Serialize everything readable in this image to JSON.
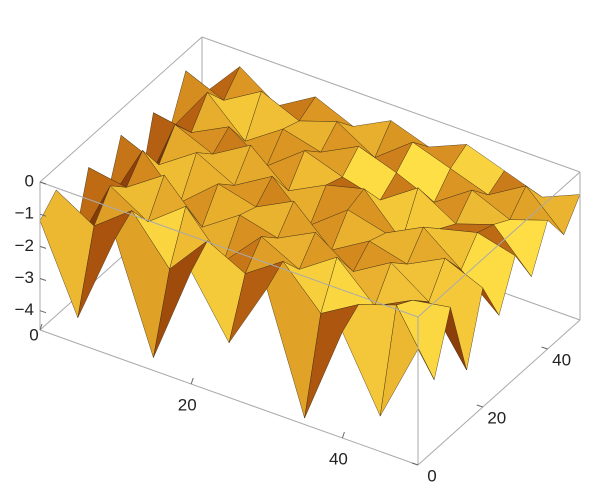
{
  "chart_data": {
    "type": "surface",
    "x": [
      0,
      5,
      10,
      15,
      20,
      25,
      30,
      35,
      40,
      45,
      50
    ],
    "y": [
      0,
      5,
      10,
      15,
      20,
      25,
      30,
      35,
      40,
      45,
      50
    ],
    "z": [
      [
        -1.2,
        -3.8,
        -0.9,
        -4.2,
        -1.1,
        -2.9,
        -0.8,
        -4.4,
        -1.3,
        -3.5,
        -1.0
      ],
      [
        -0.7,
        -1.4,
        -0.5,
        -1.9,
        -0.6,
        -1.2,
        -0.4,
        -1.6,
        -0.9,
        -0.5,
        -2.4
      ],
      [
        -3.1,
        -0.6,
        -1.3,
        -0.4,
        -1.7,
        -0.5,
        -1.1,
        -0.3,
        -1.4,
        -0.8,
        -0.6
      ],
      [
        -0.9,
        -1.1,
        -0.3,
        -1.5,
        -0.7,
        -1.0,
        -0.4,
        -1.2,
        -0.5,
        -1.3,
        -3.0
      ],
      [
        -2.6,
        -0.4,
        -1.6,
        -0.6,
        -0.9,
        -0.3,
        -1.4,
        -0.7,
        -1.0,
        -0.4,
        -0.9
      ],
      [
        -0.8,
        -1.3,
        -0.5,
        -1.1,
        -0.4,
        -1.5,
        -0.6,
        -0.9,
        -0.3,
        -1.2,
        -2.2
      ],
      [
        -3.4,
        -0.5,
        -1.0,
        -0.3,
        -1.3,
        -0.7,
        -0.4,
        -1.6,
        -0.8,
        -0.5,
        -0.8
      ],
      [
        -1.0,
        -1.2,
        -0.6,
        -1.4,
        -0.5,
        -0.9,
        -1.2,
        -0.4,
        -1.1,
        -0.7,
        -1.9
      ],
      [
        -2.0,
        -0.4,
        -1.5,
        -0.7,
        -1.0,
        -0.4,
        -0.8,
        -1.3,
        -0.5,
        -1.0,
        -0.6
      ],
      [
        -0.6,
        -1.1,
        -0.4,
        -0.9,
        -0.5,
        -1.2,
        -0.3,
        -0.7,
        -1.1,
        -0.4,
        -1.5
      ],
      [
        -1.8,
        -0.5,
        -1.3,
        -0.6,
        -1.1,
        -0.5,
        -0.9,
        -0.4,
        -0.8,
        -1.2,
        -0.7
      ]
    ],
    "xlim": [
      0,
      50
    ],
    "ylim": [
      0,
      50
    ],
    "zlim": [
      -4.6,
      0
    ],
    "xticks": [
      0,
      20,
      40
    ],
    "yticks": [
      0,
      20,
      40
    ],
    "zticks": [
      0,
      {
        "value": -1,
        "label": "−1"
      },
      {
        "value": -2,
        "label": "−2"
      },
      {
        "value": -3,
        "label": "−3"
      },
      {
        "value": -4,
        "label": "−4"
      }
    ],
    "color": "#f5a623"
  }
}
